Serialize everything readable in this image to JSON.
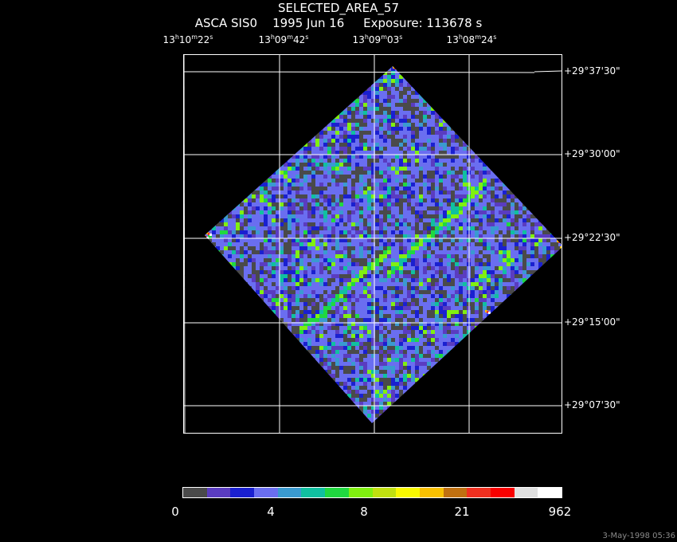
{
  "title": "SELECTED_AREA_57",
  "subtitle": {
    "instrument": "ASCA SIS0",
    "date": "1995 Jun 16",
    "exposure": "Exposure: 113678 s"
  },
  "ra_ticks": [
    {
      "h": "13",
      "m": "10",
      "s": "22"
    },
    {
      "h": "13",
      "m": "09",
      "s": "42"
    },
    {
      "h": "13",
      "m": "09",
      "s": "03"
    },
    {
      "h": "13",
      "m": "08",
      "s": "24"
    }
  ],
  "dec_ticks": [
    "+29°37'30\"",
    "+29°30'00\"",
    "+29°22'30\"",
    "+29°15'00\"",
    "+29°07'30\""
  ],
  "colorbar": {
    "colors": [
      "#4a4a4a",
      "#5a3cc0",
      "#1a20d0",
      "#6a6ef0",
      "#3a9ad0",
      "#10c0a0",
      "#20d840",
      "#80f010",
      "#c0e010",
      "#f8f800",
      "#f8c000",
      "#c07010",
      "#f03020",
      "#f80000",
      "#e0e0e0",
      "#ffffff"
    ],
    "labels": [
      "0",
      "4",
      "8",
      "21",
      "962"
    ]
  },
  "timestamp": "3-May-1998 05:36"
}
